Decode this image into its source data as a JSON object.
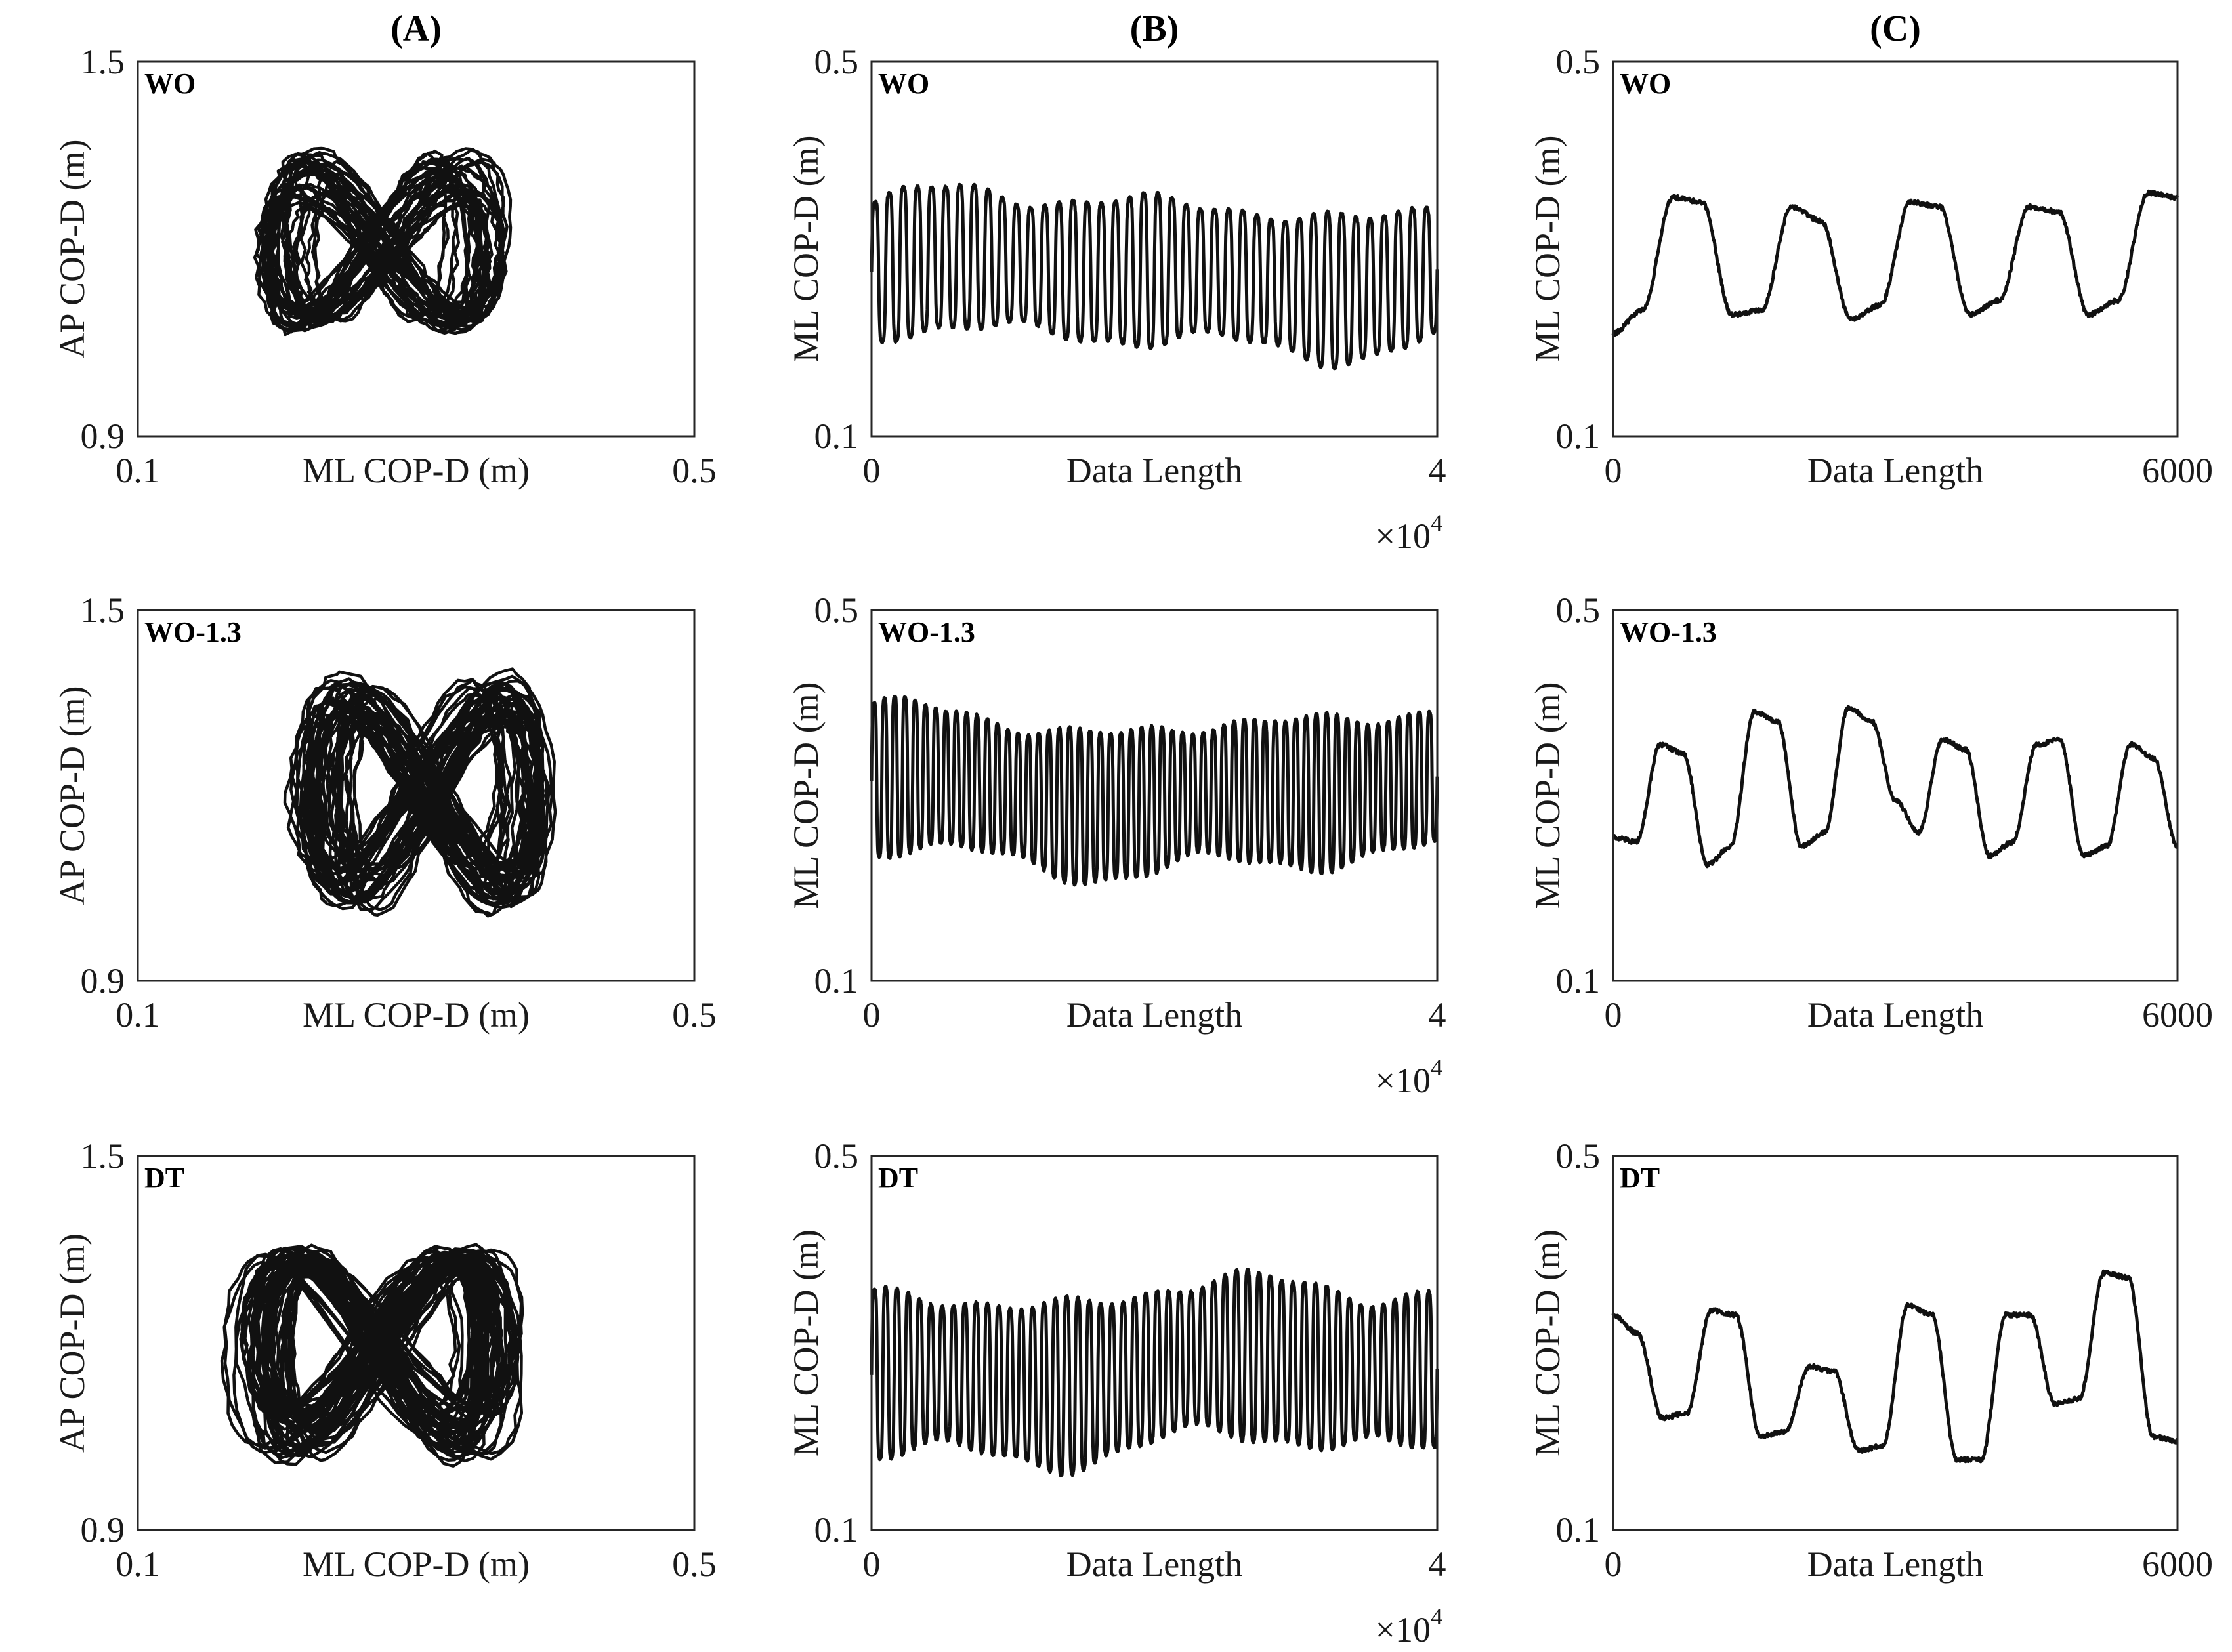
{
  "chart_data": {
    "type": "line",
    "layout": "3x3 grid",
    "columns": [
      {
        "title": "(A)",
        "kind": "phase-plot",
        "xlabel": "ML COP-D (m)",
        "ylabel": "AP COP-D (m)",
        "xlim": [
          0.1,
          0.5
        ],
        "ylim": [
          0.9,
          1.5
        ],
        "x_ticks": [
          "0.1",
          "0.5"
        ],
        "y_ticks": [
          "0.9",
          "1.5"
        ]
      },
      {
        "title": "(B)",
        "kind": "time-series-full",
        "xlabel": "Data Length",
        "ylabel": "ML COP-D (m)",
        "xlim": [
          0,
          40000
        ],
        "ylim": [
          0.1,
          0.5
        ],
        "x_ticks": [
          "0",
          "4"
        ],
        "y_ticks": [
          "0.1",
          "0.5"
        ],
        "x_multiplier_base": "×10",
        "x_multiplier_exp": "4"
      },
      {
        "title": "(C)",
        "kind": "time-series-zoom",
        "xlabel": "Data Length",
        "ylabel": "ML COP-D (m)",
        "xlim": [
          0,
          6000
        ],
        "ylim": [
          0.1,
          0.5
        ],
        "x_ticks": [
          "0",
          "6000"
        ],
        "y_ticks": [
          "0.1",
          "0.5"
        ]
      }
    ],
    "conditions": [
      {
        "label": "WO",
        "ml_center": 0.275,
        "ml_amplitude": 0.072,
        "ap_center": 1.2,
        "ap_amplitude": 0.115,
        "cycles_full_record": 40,
        "zoom_values": [
          0.21,
          0.235,
          0.355,
          0.35,
          0.23,
          0.235,
          0.345,
          0.33,
          0.225,
          0.24,
          0.35,
          0.345,
          0.23,
          0.245,
          0.345,
          0.34,
          0.23,
          0.245,
          0.36,
          0.355
        ]
      },
      {
        "label": "WO-1.3",
        "ml_center": 0.305,
        "ml_amplitude": 0.075,
        "ap_center": 1.205,
        "ap_amplitude": 0.15,
        "cycles_full_record": 55,
        "zoom_values": [
          0.255,
          0.25,
          0.355,
          0.345,
          0.225,
          0.245,
          0.39,
          0.38,
          0.245,
          0.26,
          0.395,
          0.38,
          0.295,
          0.26,
          0.36,
          0.35,
          0.235,
          0.25,
          0.355,
          0.36,
          0.235,
          0.245,
          0.355,
          0.34,
          0.245
        ]
      },
      {
        "label": "DT",
        "ml_center": 0.27,
        "ml_amplitude": 0.082,
        "ap_center": 1.195,
        "ap_amplitude": 0.14,
        "cycles_full_record": 50,
        "zoom_values": [
          0.33,
          0.31,
          0.22,
          0.225,
          0.335,
          0.33,
          0.2,
          0.205,
          0.275,
          0.27,
          0.185,
          0.19,
          0.34,
          0.33,
          0.175,
          0.175,
          0.33,
          0.33,
          0.235,
          0.24,
          0.375,
          0.37,
          0.2,
          0.195
        ]
      }
    ]
  }
}
